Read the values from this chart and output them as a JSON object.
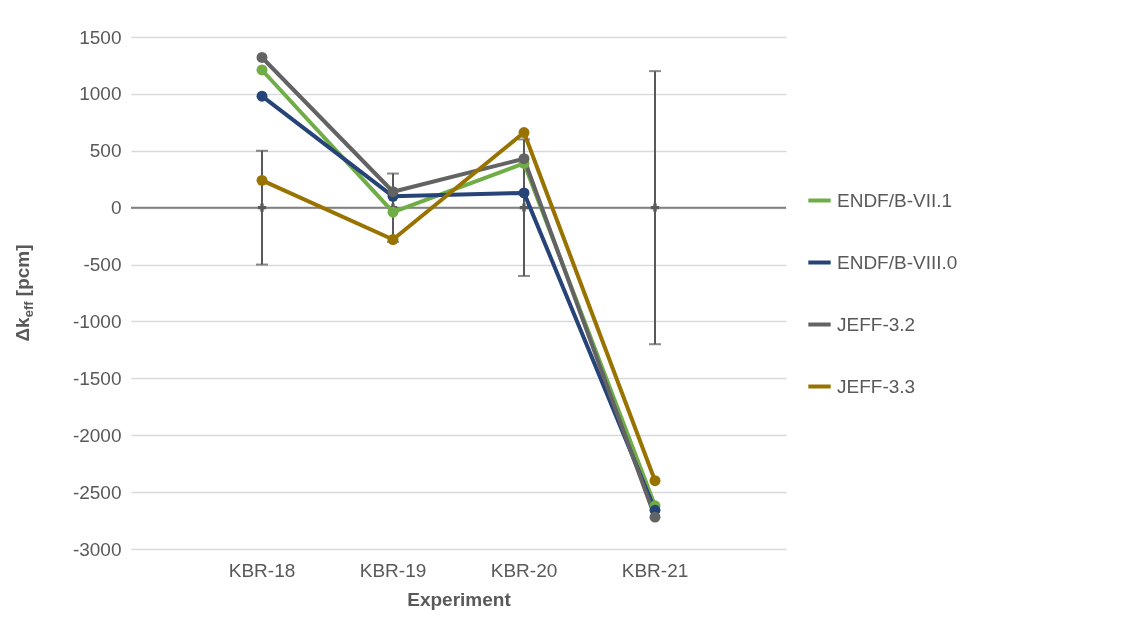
{
  "chart_data": {
    "type": "line",
    "xlabel": "Experiment",
    "ylabel": "Δk$_{eff}$ [pcm]",
    "categories": [
      "KBR-18",
      "KBR-19",
      "KBR-20",
      "KBR-21"
    ],
    "series": [
      {
        "name": "ENDF/B-VII.1",
        "color": "#70ad47",
        "values": [
          1210,
          -40,
          390,
          -2620
        ]
      },
      {
        "name": "ENDF/B-VIII.0",
        "color": "#264478",
        "values": [
          980,
          100,
          130,
          -2660
        ]
      },
      {
        "name": "JEFF-3.2",
        "color": "#636363",
        "values": [
          1320,
          140,
          430,
          -2720
        ]
      },
      {
        "name": "JEFF-3.3",
        "color": "#997300",
        "values": [
          240,
          -280,
          660,
          -2400
        ]
      },
      {
        "type": "scatter",
        "marker": "cross",
        "color": "#595959",
        "values": [
          0,
          0,
          0,
          0
        ],
        "errors": [
          500,
          300,
          600,
          1200
        ]
      }
    ],
    "ylim": [
      -3000,
      1500
    ],
    "yticks": [
      -3000,
      -2500,
      -2000,
      -1500,
      -1000,
      -500,
      0,
      500,
      1000,
      1500
    ],
    "ref_lines": [
      {
        "axis": "y",
        "value": 0,
        "color": "#808080"
      }
    ],
    "grid": "y",
    "legend": "right",
    "marker": "circle",
    "line_style": "solid"
  }
}
